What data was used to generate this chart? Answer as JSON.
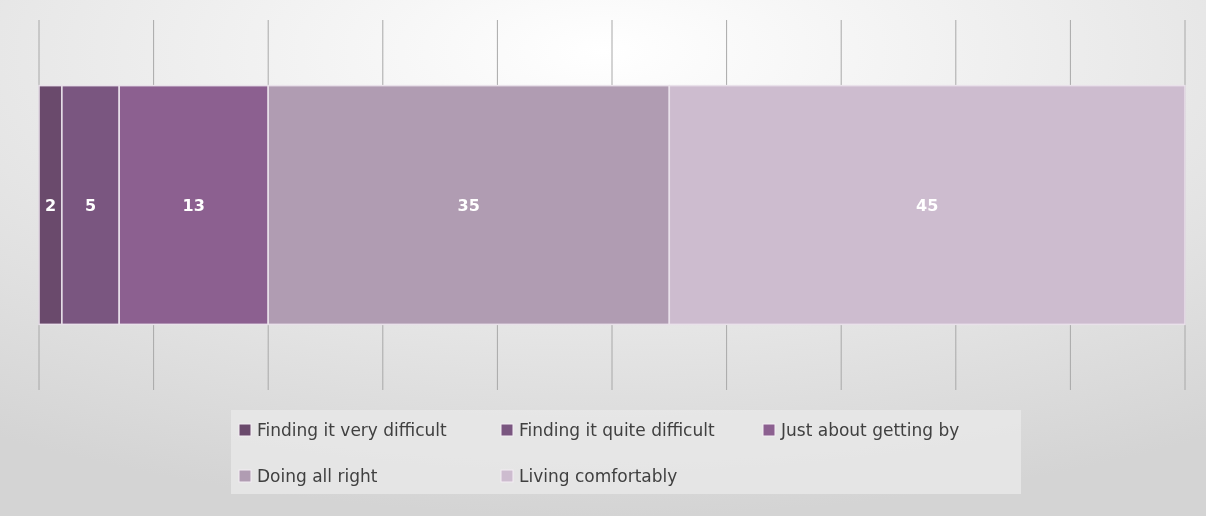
{
  "chart_data": {
    "type": "bar",
    "orientation": "horizontal",
    "stacked": true,
    "categories": [
      null
    ],
    "series": [
      {
        "name": "Finding it very difficult",
        "color": "#6a4a6c",
        "values": [
          2
        ]
      },
      {
        "name": "Finding it quite difficult",
        "color": "#7a5680",
        "values": [
          5
        ]
      },
      {
        "name": "Just about getting by",
        "color": "#8c6090",
        "values": [
          13
        ]
      },
      {
        "name": "Doing all right",
        "color": "#b09cb2",
        "values": [
          35
        ]
      },
      {
        "name": "Living comfortably",
        "color": "#cdbccf",
        "values": [
          45
        ]
      }
    ],
    "xlim": [
      0,
      100
    ],
    "xticks": [
      {
        "value": 0,
        "label": null
      },
      {
        "value": 10,
        "label": null
      },
      {
        "value": 20,
        "label": null
      },
      {
        "value": 30,
        "label": null
      },
      {
        "value": 40,
        "label": null
      },
      {
        "value": 50,
        "label": null
      },
      {
        "value": 60,
        "label": null
      },
      {
        "value": 70,
        "label": null
      },
      {
        "value": 80,
        "label": null
      },
      {
        "value": 90,
        "label": null
      },
      {
        "value": 100,
        "label": null
      }
    ],
    "grid": "x",
    "data_labels": true,
    "legend": "bottom"
  }
}
